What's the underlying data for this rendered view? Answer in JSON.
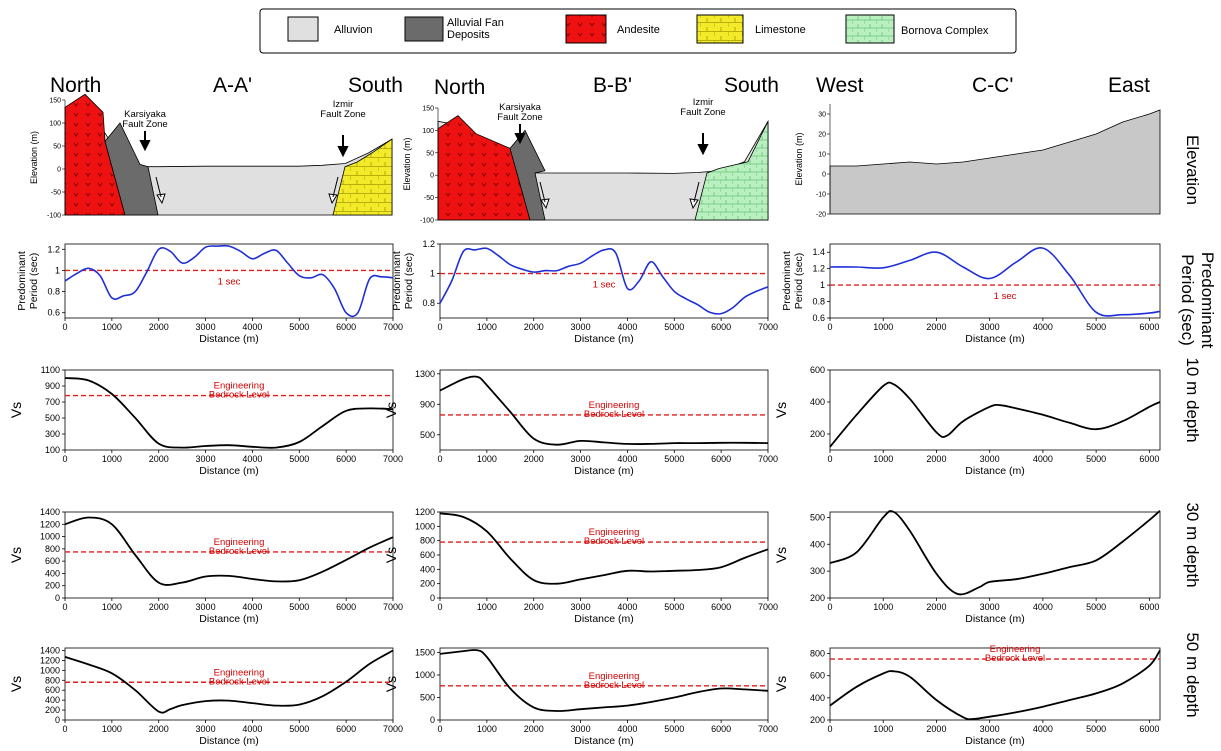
{
  "legend": {
    "items": [
      {
        "label": "Alluvion",
        "color": "#e0e0e0"
      },
      {
        "label": "Alluvial Fan\nDeposits",
        "color": "#6b6b6b"
      },
      {
        "label": "Andesite",
        "color": "#ee1111"
      },
      {
        "label": "Limestone",
        "color": "#f3ea2a"
      },
      {
        "label": "Bornova Complex",
        "color": "#b8f0c0"
      }
    ]
  },
  "row_labels": {
    "elevation": "Elevation",
    "period": "Predominant\nPeriod (sec)",
    "d10": "10 m depth",
    "d30": "30 m depth",
    "d50": "50 m depth"
  },
  "columns": [
    {
      "title": "A-A'",
      "left_dir": "North",
      "right_dir": "South"
    },
    {
      "title": "B-B'",
      "left_dir": "North",
      "right_dir": "South"
    },
    {
      "title": "C-C'",
      "left_dir": "West",
      "right_dir": "East"
    }
  ],
  "texts": {
    "elev_ylabel": "Elevation (m)",
    "period_ylabel": "Predominant\nPeriod (sec)",
    "xlabel": "Distance (m)",
    "vs_label": "Vs",
    "one_sec": "1 sec",
    "eng_bedrock": "Engineering\nBedrock Level",
    "karsiyaka": "Karsiyaka\nFault Zone",
    "izmir": "Izmir\nFault Zone"
  },
  "chart_data": [
    {
      "id": "elev-A",
      "type": "area",
      "ylabel": "Elevation (m)",
      "ylim": [
        -100,
        150
      ],
      "yticks": [
        -100,
        -50,
        0,
        50,
        100,
        150
      ],
      "x": [
        0,
        250,
        500,
        750,
        1000,
        1250,
        1500,
        2000,
        3000,
        4000,
        5000,
        5500,
        6000,
        6500,
        7000
      ],
      "y": [
        100,
        145,
        130,
        95,
        55,
        15,
        5,
        5,
        6,
        6,
        6,
        8,
        12,
        35,
        65
      ]
    },
    {
      "id": "elev-B",
      "type": "area",
      "ylabel": "Elevation (m)",
      "ylim": [
        -100,
        150
      ],
      "yticks": [
        -100,
        -50,
        0,
        50,
        100,
        150
      ],
      "x": [
        0,
        300,
        700,
        1000,
        1400,
        1700,
        2000,
        3000,
        4000,
        5000,
        5500,
        6000,
        6500,
        7000
      ],
      "y": [
        120,
        115,
        90,
        60,
        25,
        8,
        5,
        5,
        5,
        4,
        6,
        10,
        30,
        120
      ]
    },
    {
      "id": "elev-C",
      "type": "area",
      "ylabel": "Elevation (m)",
      "ylim": [
        -20,
        35
      ],
      "yticks": [
        -20,
        -10,
        0,
        10,
        20,
        30
      ],
      "x": [
        0,
        500,
        1000,
        1500,
        2000,
        2500,
        3000,
        3500,
        4000,
        4500,
        5000,
        5500,
        6000,
        6200
      ],
      "y": [
        4,
        4,
        5,
        6,
        5,
        6,
        8,
        10,
        12,
        16,
        20,
        26,
        30,
        32
      ]
    },
    {
      "id": "per-A",
      "type": "line",
      "xlabel": "Distance (m)",
      "ylabel": "Predominant Period (sec)",
      "ylim": [
        0.55,
        1.25
      ],
      "yticks": [
        0.6,
        0.8,
        1,
        1.2
      ],
      "xlim": [
        0,
        7000
      ],
      "x": [
        0,
        250,
        500,
        750,
        1000,
        1250,
        1500,
        1750,
        2000,
        2250,
        2500,
        2750,
        3000,
        3250,
        3500,
        3750,
        4000,
        4250,
        4500,
        4750,
        5000,
        5250,
        5500,
        5750,
        6000,
        6250,
        6500,
        6750,
        7000
      ],
      "y": [
        0.9,
        0.97,
        1.02,
        0.95,
        0.74,
        0.76,
        0.8,
        0.99,
        1.2,
        1.18,
        1.07,
        1.12,
        1.22,
        1.23,
        1.23,
        1.18,
        1.11,
        1.16,
        1.19,
        1.07,
        0.95,
        0.93,
        0.96,
        0.83,
        0.6,
        0.6,
        0.92,
        0.94,
        0.93
      ],
      "ref_line": 1.0
    },
    {
      "id": "per-B",
      "type": "line",
      "xlabel": "Distance (m)",
      "ylabel": "Predominant Period (sec)",
      "ylim": [
        0.7,
        1.2
      ],
      "yticks": [
        0.8,
        1,
        1.2
      ],
      "xlim": [
        0,
        7000
      ],
      "x": [
        0,
        250,
        500,
        750,
        1000,
        1250,
        1500,
        1750,
        2000,
        2250,
        2500,
        2750,
        3000,
        3250,
        3500,
        3750,
        4000,
        4250,
        4500,
        4750,
        5000,
        5250,
        5500,
        5750,
        6000,
        6250,
        6500,
        6750,
        7000
      ],
      "y": [
        0.8,
        0.95,
        1.15,
        1.16,
        1.17,
        1.12,
        1.06,
        1.03,
        1.01,
        1.02,
        1.02,
        1.05,
        1.07,
        1.12,
        1.16,
        1.14,
        0.9,
        0.95,
        1.08,
        0.98,
        0.88,
        0.83,
        0.79,
        0.74,
        0.73,
        0.77,
        0.84,
        0.88,
        0.91
      ],
      "ref_line": 1.0
    },
    {
      "id": "per-C",
      "type": "line",
      "xlabel": "Distance (m)",
      "ylabel": "Predominant Period (sec)",
      "ylim": [
        0.6,
        1.5
      ],
      "yticks": [
        0.6,
        0.8,
        1,
        1.2,
        1.4
      ],
      "xlim": [
        0,
        6200
      ],
      "x": [
        0,
        500,
        1000,
        1500,
        2000,
        2500,
        3000,
        3500,
        4000,
        4500,
        5000,
        5500,
        6000,
        6200
      ],
      "y": [
        1.22,
        1.22,
        1.21,
        1.3,
        1.4,
        1.22,
        1.08,
        1.28,
        1.45,
        1.12,
        0.67,
        0.64,
        0.66,
        0.68
      ],
      "ref_line": 1.0
    },
    {
      "id": "vs10-A",
      "type": "line",
      "xlabel": "Distance (m)",
      "ylabel": "Vs",
      "ylim": [
        100,
        1100
      ],
      "yticks": [
        100,
        300,
        500,
        700,
        900,
        1100
      ],
      "xlim": [
        0,
        7000
      ],
      "x": [
        0,
        500,
        1000,
        1500,
        2000,
        2500,
        3000,
        3500,
        4000,
        4500,
        5000,
        5500,
        6000,
        6500,
        7000
      ],
      "y": [
        1000,
        970,
        800,
        500,
        180,
        130,
        150,
        160,
        140,
        130,
        200,
        400,
        590,
        620,
        610
      ],
      "ref_line": 780
    },
    {
      "id": "vs10-B",
      "type": "line",
      "xlabel": "Distance (m)",
      "ylabel": "Vs",
      "ylim": [
        300,
        1350
      ],
      "yticks": [
        500,
        900,
        1300
      ],
      "xlim": [
        0,
        7000
      ],
      "x": [
        0,
        500,
        800,
        1000,
        1500,
        2000,
        2500,
        3000,
        3500,
        4000,
        4500,
        5000,
        5500,
        6000,
        6500,
        7000
      ],
      "y": [
        1080,
        1230,
        1260,
        1150,
        800,
        450,
        370,
        420,
        400,
        380,
        380,
        390,
        390,
        395,
        395,
        390
      ],
      "ref_line": 760
    },
    {
      "id": "vs10-C",
      "type": "line",
      "xlabel": "Distance (m)",
      "ylabel": "Vs",
      "ylim": [
        100,
        600
      ],
      "yticks": [
        200,
        400,
        600
      ],
      "xlim": [
        0,
        6200
      ],
      "x": [
        0,
        500,
        1000,
        1200,
        1500,
        2000,
        2200,
        2500,
        3000,
        3200,
        3500,
        4000,
        4500,
        5000,
        5500,
        6000,
        6200
      ],
      "y": [
        120,
        320,
        500,
        510,
        420,
        210,
        190,
        280,
        370,
        380,
        360,
        320,
        270,
        230,
        280,
        370,
        400
      ]
    },
    {
      "id": "vs30-A",
      "type": "line",
      "xlabel": "Distance (m)",
      "ylabel": "Vs",
      "ylim": [
        0,
        1400
      ],
      "yticks": [
        0,
        200,
        400,
        600,
        800,
        1000,
        1200,
        1400
      ],
      "xlim": [
        0,
        7000
      ],
      "x": [
        0,
        500,
        1000,
        1500,
        2000,
        2500,
        3000,
        3500,
        4000,
        4500,
        5000,
        5500,
        6000,
        6500,
        7000
      ],
      "y": [
        1200,
        1310,
        1200,
        700,
        250,
        250,
        350,
        360,
        310,
        270,
        290,
        430,
        620,
        820,
        990
      ],
      "ref_line": 750
    },
    {
      "id": "vs30-B",
      "type": "line",
      "xlabel": "Distance (m)",
      "ylabel": "Vs",
      "ylim": [
        0,
        1200
      ],
      "yticks": [
        0,
        200,
        400,
        600,
        800,
        1000,
        1200
      ],
      "xlim": [
        0,
        7000
      ],
      "x": [
        0,
        500,
        1000,
        1500,
        2000,
        2500,
        3000,
        3500,
        4000,
        4500,
        5000,
        5500,
        6000,
        6500,
        7000
      ],
      "y": [
        1180,
        1130,
        930,
        550,
        250,
        200,
        260,
        320,
        380,
        370,
        380,
        390,
        430,
        560,
        680
      ],
      "ref_line": 780
    },
    {
      "id": "vs30-C",
      "type": "line",
      "xlabel": "Distance (m)",
      "ylabel": "Vs",
      "ylim": [
        200,
        520
      ],
      "yticks": [
        200,
        300,
        400,
        500
      ],
      "xlim": [
        0,
        6200
      ],
      "x": [
        0,
        500,
        1000,
        1200,
        1500,
        2000,
        2400,
        2800,
        3000,
        3500,
        4000,
        4500,
        5000,
        5500,
        6000,
        6200
      ],
      "y": [
        330,
        370,
        500,
        520,
        450,
        290,
        215,
        240,
        260,
        270,
        290,
        315,
        340,
        410,
        490,
        525
      ]
    },
    {
      "id": "vs50-A",
      "type": "line",
      "xlabel": "Distance (m)",
      "ylabel": "Vs",
      "ylim": [
        0,
        1450
      ],
      "yticks": [
        0,
        200,
        400,
        600,
        800,
        1000,
        1200,
        1400
      ],
      "xlim": [
        0,
        7000
      ],
      "x": [
        0,
        500,
        1000,
        1500,
        2000,
        2250,
        2500,
        3000,
        3500,
        4000,
        4500,
        5000,
        5500,
        6000,
        6500,
        7000
      ],
      "y": [
        1270,
        1120,
        940,
        600,
        170,
        220,
        300,
        380,
        390,
        340,
        290,
        310,
        480,
        770,
        1130,
        1400
      ],
      "ref_line": 760
    },
    {
      "id": "vs50-B",
      "type": "line",
      "xlabel": "Distance (m)",
      "ylabel": "Vs",
      "ylim": [
        0,
        1600
      ],
      "yticks": [
        0,
        500,
        1000,
        1500
      ],
      "xlim": [
        0,
        7000
      ],
      "x": [
        0,
        500,
        800,
        1000,
        1500,
        2000,
        2500,
        3000,
        3500,
        4000,
        4500,
        5000,
        5500,
        6000,
        6500,
        7000
      ],
      "y": [
        1470,
        1530,
        1550,
        1400,
        700,
        280,
        200,
        240,
        280,
        320,
        400,
        500,
        620,
        700,
        680,
        650
      ],
      "ref_line": 760
    },
    {
      "id": "vs50-C",
      "type": "line",
      "xlabel": "Distance (m)",
      "ylabel": "Vs",
      "ylim": [
        200,
        850
      ],
      "yticks": [
        200,
        400,
        600,
        800
      ],
      "xlim": [
        0,
        6200
      ],
      "x": [
        0,
        500,
        1000,
        1200,
        1500,
        2000,
        2500,
        2700,
        3000,
        3500,
        4000,
        4500,
        5000,
        5500,
        6000,
        6200
      ],
      "y": [
        330,
        500,
        620,
        640,
        590,
        380,
        225,
        210,
        230,
        270,
        320,
        380,
        440,
        530,
        690,
        830
      ],
      "ref_line": 750
    }
  ]
}
